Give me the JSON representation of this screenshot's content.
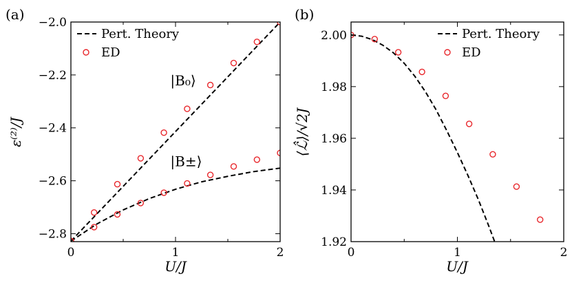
{
  "figure": {
    "colors": {
      "theory": "#000000",
      "ed": "#e8262b"
    }
  },
  "chart_data": [
    {
      "type": "scatter",
      "panel_label": "(a)",
      "xlabel": "U/J",
      "ylabel": "ε⁽²⁾/J",
      "xlim": [
        0,
        2
      ],
      "ylim": [
        -2.83,
        -2.0
      ],
      "xticks": [
        0,
        1,
        2
      ],
      "xtick_labels": [
        "0",
        "1",
        "2"
      ],
      "yticks": [
        -2.8,
        -2.6,
        -2.4,
        -2.2,
        -2.0
      ],
      "ytick_labels": [
        "−2.8",
        "−2.6",
        "−2.4",
        "−2.2",
        "−2.0"
      ],
      "legend": {
        "placement": "top-left",
        "entries": [
          "Pert. Theory",
          "ED"
        ]
      },
      "annotations": [
        {
          "text": "|B₀⟩",
          "x": 0.95,
          "y": -2.24
        },
        {
          "text": "|B±⟩",
          "x": 0.95,
          "y": -2.545
        }
      ],
      "series": [
        {
          "name": "Pert. Theory",
          "style": "dashed",
          "x": [
            0,
            2
          ],
          "y": [
            -2.828,
            -2.0
          ]
        },
        {
          "name": "Pert. Theory",
          "style": "dashed",
          "x": [
            0,
            0.25,
            0.5,
            0.75,
            1.0,
            1.25,
            1.5,
            1.75,
            2.0
          ],
          "y": [
            -2.828,
            -2.763,
            -2.71,
            -2.667,
            -2.632,
            -2.604,
            -2.583,
            -2.565,
            -2.552
          ]
        },
        {
          "name": "ED",
          "style": "marker",
          "x": [
            0,
            0.222,
            0.444,
            0.667,
            0.889,
            1.111,
            1.333,
            1.556,
            1.778,
            2.0
          ],
          "y": [
            -2.828,
            -2.72,
            -2.613,
            -2.515,
            -2.418,
            -2.328,
            -2.238,
            -2.155,
            -2.075,
            -2.0
          ]
        },
        {
          "name": "ED",
          "style": "marker",
          "x": [
            0,
            0.222,
            0.444,
            0.667,
            0.889,
            1.111,
            1.333,
            1.556,
            1.778,
            2.0
          ],
          "y": [
            -2.828,
            -2.775,
            -2.727,
            -2.684,
            -2.645,
            -2.61,
            -2.578,
            -2.546,
            -2.52,
            -2.495
          ]
        }
      ]
    },
    {
      "type": "scatter",
      "panel_label": "(b)",
      "xlabel": "U/J",
      "ylabel": "⟨ℒ̂⟩/√2J",
      "xlim": [
        0,
        2
      ],
      "ylim": [
        1.92,
        2.005
      ],
      "xticks": [
        0,
        1,
        2
      ],
      "xtick_labels": [
        "0",
        "1",
        "2"
      ],
      "yticks": [
        1.92,
        1.94,
        1.96,
        1.98,
        2.0
      ],
      "ytick_labels": [
        "1.92",
        "1.94",
        "1.96",
        "1.98",
        "2.00"
      ],
      "legend": {
        "placement": "top-right",
        "entries": [
          "Pert. Theory",
          "ED"
        ]
      },
      "series": [
        {
          "name": "Pert. Theory",
          "style": "dashed",
          "x": [
            0,
            0.1,
            0.2,
            0.3,
            0.4,
            0.5,
            0.6,
            0.7,
            0.8,
            0.9,
            1.0,
            1.1,
            1.2,
            1.3,
            1.4,
            1.43
          ],
          "y": [
            2.0,
            1.9995,
            1.9982,
            1.996,
            1.993,
            1.989,
            1.984,
            1.978,
            1.971,
            1.963,
            1.9545,
            1.9455,
            1.936,
            1.9255,
            1.9145,
            1.911
          ]
        },
        {
          "name": "ED",
          "style": "marker",
          "x": [
            0,
            0.222,
            0.444,
            0.667,
            0.889,
            1.111,
            1.333,
            1.556,
            1.778
          ],
          "y": [
            2.0,
            1.9984,
            1.9933,
            1.9857,
            1.9764,
            1.9656,
            1.9538,
            1.9413,
            1.9285
          ]
        }
      ]
    }
  ]
}
